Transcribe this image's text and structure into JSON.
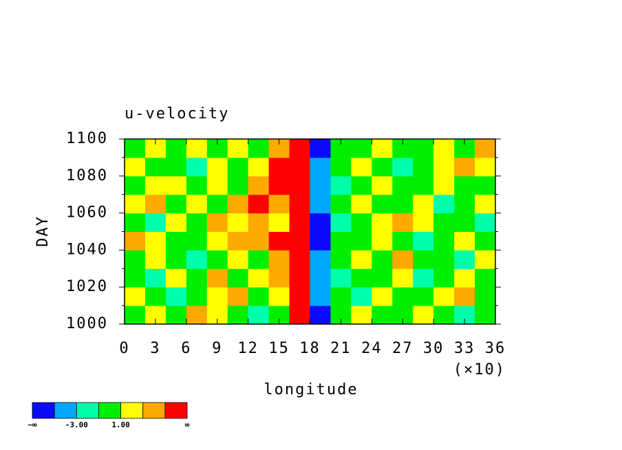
{
  "chart_data": {
    "type": "heatmap",
    "title": "u-velocity",
    "xlabel": "longitude",
    "ylabel": "DAY",
    "xmultiplier": "(×10)",
    "xlim": [
      0,
      36
    ],
    "xticks": [
      0,
      3,
      6,
      9,
      12,
      15,
      18,
      21,
      24,
      27,
      30,
      33,
      36
    ],
    "ylim": [
      1000,
      1100
    ],
    "yticks": [
      1000,
      1020,
      1040,
      1060,
      1080,
      1100
    ],
    "levels": [
      -5,
      -3,
      -1,
      1,
      3,
      5
    ],
    "colors": [
      "#0a0aff",
      "#00a8ff",
      "#00ffaa",
      "#00ee00",
      "#ffff00",
      "#ffaa00",
      "#ff0000"
    ],
    "colorbar_ends": [
      "−∞",
      "∞"
    ],
    "colorbar_ticks": [
      {
        "value": -3,
        "label": "-3.00"
      },
      {
        "value": 1,
        "label": "1.00"
      }
    ],
    "z": [
      [
        0,
        2,
        0,
        4,
        2,
        0,
        -2,
        0,
        6,
        -6,
        0,
        2,
        0,
        0,
        2,
        0,
        -2,
        0
      ],
      [
        2,
        0,
        -2,
        0,
        2,
        4,
        0,
        2,
        6,
        -4,
        0,
        -2,
        2,
        0,
        0,
        2,
        4,
        0
      ],
      [
        0,
        -2,
        2,
        0,
        4,
        0,
        2,
        4,
        6,
        -4,
        -2,
        0,
        0,
        2,
        -2,
        0,
        2,
        0
      ],
      [
        0,
        2,
        0,
        -2,
        0,
        2,
        0,
        4,
        6,
        -4,
        0,
        2,
        0,
        4,
        0,
        0,
        -2,
        2
      ],
      [
        4,
        2,
        0,
        0,
        2,
        4,
        4,
        6,
        6,
        -6,
        0,
        0,
        2,
        0,
        -2,
        0,
        2,
        0
      ],
      [
        0,
        -2,
        2,
        0,
        4,
        2,
        4,
        2,
        6,
        -6,
        -2,
        0,
        2,
        4,
        2,
        0,
        0,
        -2
      ],
      [
        2,
        4,
        0,
        2,
        0,
        4,
        6,
        4,
        6,
        -4,
        0,
        2,
        0,
        0,
        2,
        -2,
        0,
        2
      ],
      [
        0,
        2,
        2,
        0,
        2,
        0,
        4,
        6,
        6,
        -4,
        -2,
        0,
        2,
        0,
        0,
        2,
        0,
        0
      ],
      [
        2,
        0,
        0,
        -2,
        2,
        0,
        2,
        6,
        6,
        -4,
        0,
        2,
        0,
        -2,
        0,
        2,
        4,
        2
      ],
      [
        0,
        2,
        0,
        2,
        0,
        2,
        0,
        4,
        6,
        -6,
        0,
        0,
        2,
        0,
        0,
        2,
        0,
        4
      ]
    ]
  }
}
